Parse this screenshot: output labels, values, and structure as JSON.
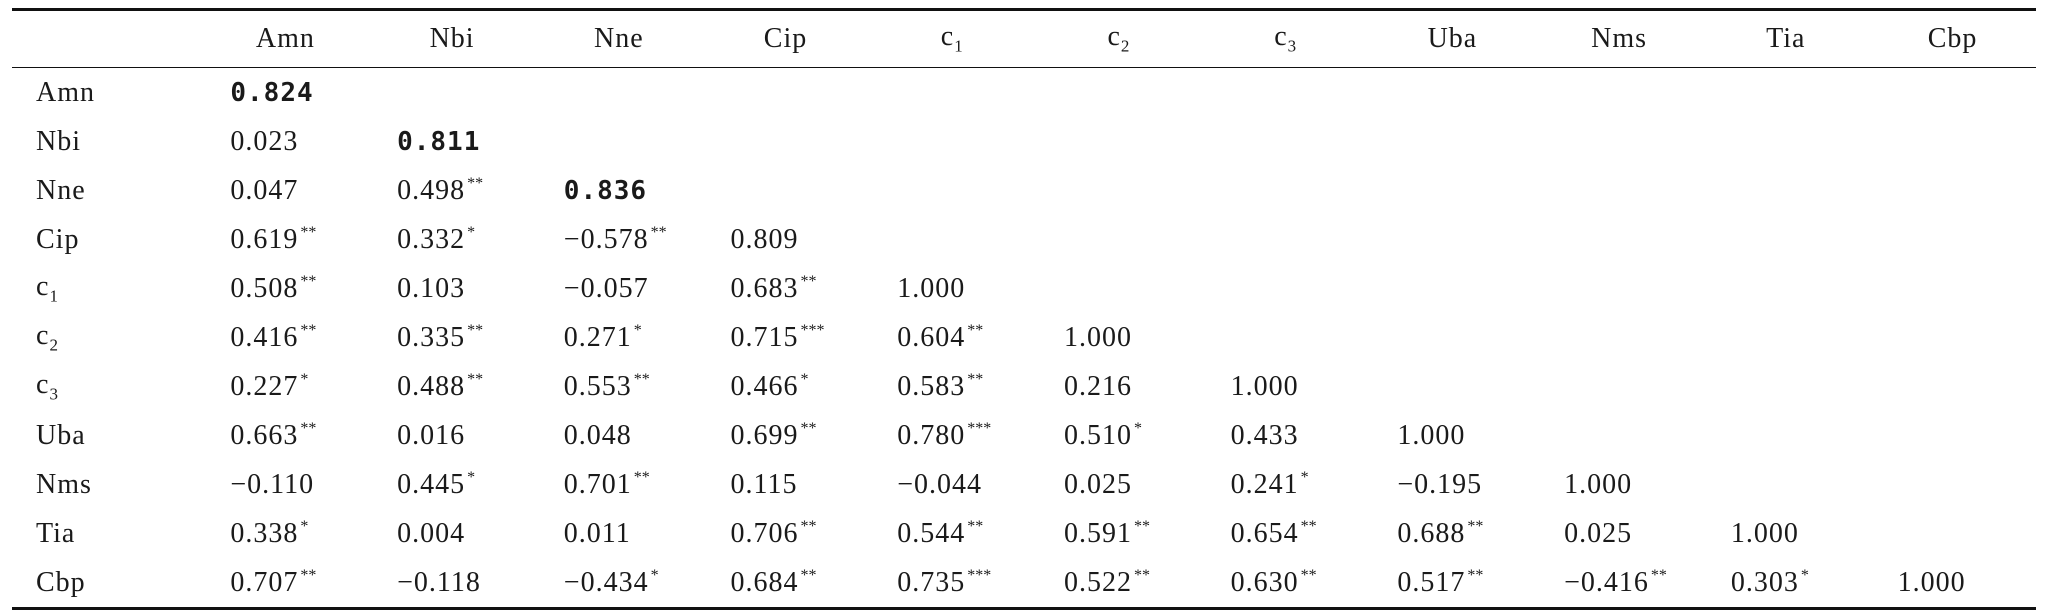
{
  "table": {
    "columns": [
      "Amn",
      "Nbi",
      "Nne",
      "Cip",
      "c1",
      "c2",
      "c3",
      "Uba",
      "Nms",
      "Tia",
      "Cbp"
    ],
    "rows": [
      {
        "label": "Amn",
        "cells": [
          {
            "v": "0.824",
            "s": "",
            "bold": true
          }
        ]
      },
      {
        "label": "Nbi",
        "cells": [
          {
            "v": "0.023",
            "s": ""
          },
          {
            "v": "0.811",
            "s": "",
            "bold": true
          }
        ]
      },
      {
        "label": "Nne",
        "cells": [
          {
            "v": "0.047",
            "s": ""
          },
          {
            "v": "0.498",
            "s": "**"
          },
          {
            "v": "0.836",
            "s": "",
            "bold": true
          }
        ]
      },
      {
        "label": "Cip",
        "cells": [
          {
            "v": "0.619",
            "s": "**"
          },
          {
            "v": "0.332",
            "s": "*"
          },
          {
            "v": "−0.578",
            "s": "**"
          },
          {
            "v": "0.809",
            "s": ""
          }
        ]
      },
      {
        "label": "c1",
        "cells": [
          {
            "v": "0.508",
            "s": "**"
          },
          {
            "v": "0.103",
            "s": ""
          },
          {
            "v": "−0.057",
            "s": ""
          },
          {
            "v": "0.683",
            "s": "**"
          },
          {
            "v": "1.000",
            "s": ""
          }
        ]
      },
      {
        "label": "c2",
        "cells": [
          {
            "v": "0.416",
            "s": "**"
          },
          {
            "v": "0.335",
            "s": "**"
          },
          {
            "v": "0.271",
            "s": "*"
          },
          {
            "v": "0.715",
            "s": "***"
          },
          {
            "v": "0.604",
            "s": "**"
          },
          {
            "v": "1.000",
            "s": ""
          }
        ]
      },
      {
        "label": "c3",
        "cells": [
          {
            "v": "0.227",
            "s": "*"
          },
          {
            "v": "0.488",
            "s": "**"
          },
          {
            "v": "0.553",
            "s": "**"
          },
          {
            "v": "0.466",
            "s": "*"
          },
          {
            "v": "0.583",
            "s": "**"
          },
          {
            "v": "0.216",
            "s": ""
          },
          {
            "v": "1.000",
            "s": ""
          }
        ]
      },
      {
        "label": "Uba",
        "cells": [
          {
            "v": "0.663",
            "s": "**"
          },
          {
            "v": "0.016",
            "s": ""
          },
          {
            "v": "0.048",
            "s": ""
          },
          {
            "v": "0.699",
            "s": "**"
          },
          {
            "v": "0.780",
            "s": "***"
          },
          {
            "v": "0.510",
            "s": "*"
          },
          {
            "v": "0.433",
            "s": ""
          },
          {
            "v": "1.000",
            "s": ""
          }
        ]
      },
      {
        "label": "Nms",
        "cells": [
          {
            "v": "−0.110",
            "s": ""
          },
          {
            "v": "0.445",
            "s": "*"
          },
          {
            "v": "0.701",
            "s": "**"
          },
          {
            "v": "0.115",
            "s": ""
          },
          {
            "v": "−0.044",
            "s": ""
          },
          {
            "v": "0.025",
            "s": ""
          },
          {
            "v": "0.241",
            "s": "*"
          },
          {
            "v": "−0.195",
            "s": ""
          },
          {
            "v": "1.000",
            "s": ""
          }
        ]
      },
      {
        "label": "Tia",
        "cells": [
          {
            "v": "0.338",
            "s": "*"
          },
          {
            "v": "0.004",
            "s": ""
          },
          {
            "v": "0.011",
            "s": ""
          },
          {
            "v": "0.706",
            "s": "**"
          },
          {
            "v": "0.544",
            "s": "**"
          },
          {
            "v": "0.591",
            "s": "**"
          },
          {
            "v": "0.654",
            "s": "**"
          },
          {
            "v": "0.688",
            "s": "**"
          },
          {
            "v": "0.025",
            "s": ""
          },
          {
            "v": "1.000",
            "s": ""
          }
        ]
      },
      {
        "label": "Cbp",
        "cells": [
          {
            "v": "0.707",
            "s": "**"
          },
          {
            "v": "−0.118",
            "s": ""
          },
          {
            "v": "−0.434",
            "s": "*"
          },
          {
            "v": "0.684",
            "s": "**"
          },
          {
            "v": "0.735",
            "s": "***"
          },
          {
            "v": "0.522",
            "s": "**"
          },
          {
            "v": "0.630",
            "s": "**"
          },
          {
            "v": "0.517",
            "s": "**"
          },
          {
            "v": "−0.416",
            "s": "**"
          },
          {
            "v": "0.303",
            "s": "*"
          },
          {
            "v": "1.000",
            "s": ""
          }
        ]
      }
    ]
  }
}
